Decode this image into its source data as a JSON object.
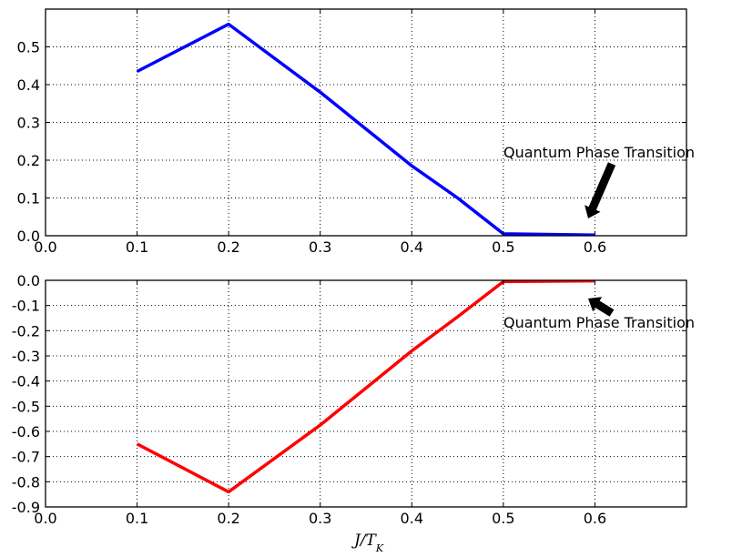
{
  "chart_data": [
    {
      "type": "line",
      "x": [
        0.1,
        0.2,
        0.3,
        0.4,
        0.45,
        0.5,
        0.6
      ],
      "series": [
        {
          "values": [
            0.435,
            0.56,
            0.38,
            0.185,
            0.1,
            0.005,
            0.002
          ],
          "color": "#0000ff"
        }
      ],
      "xlim": [
        0.0,
        0.7
      ],
      "ylim": [
        0.0,
        0.6
      ],
      "xticks": [
        "0.0",
        "0.1",
        "0.2",
        "0.3",
        "0.4",
        "0.5",
        "0.6"
      ],
      "yticks": [
        "0.0",
        "0.1",
        "0.2",
        "0.3",
        "0.4",
        "0.5"
      ],
      "grid": true,
      "xlabel": "",
      "annotation": {
        "text": "Quantum Phase Transition",
        "x": 0.6,
        "y": 0.0
      }
    },
    {
      "type": "line",
      "x": [
        0.1,
        0.2,
        0.3,
        0.4,
        0.45,
        0.5,
        0.6
      ],
      "series": [
        {
          "values": [
            -0.65,
            -0.84,
            -0.575,
            -0.28,
            -0.145,
            -0.005,
            -0.002
          ],
          "color": "#ff0000"
        }
      ],
      "xlim": [
        0.0,
        0.7
      ],
      "ylim": [
        -0.9,
        0.0
      ],
      "xticks": [
        "0.0",
        "0.1",
        "0.2",
        "0.3",
        "0.4",
        "0.5",
        "0.6"
      ],
      "yticks": [
        "0.0",
        "-0.1",
        "-0.2",
        "-0.3",
        "-0.4",
        "-0.5",
        "-0.6",
        "-0.7",
        "-0.8",
        "-0.9"
      ],
      "grid": true,
      "xlabel": "J/T_K",
      "annotation": {
        "text": "Quantum Phase Transition",
        "x": 0.6,
        "y": 0.0
      }
    }
  ]
}
